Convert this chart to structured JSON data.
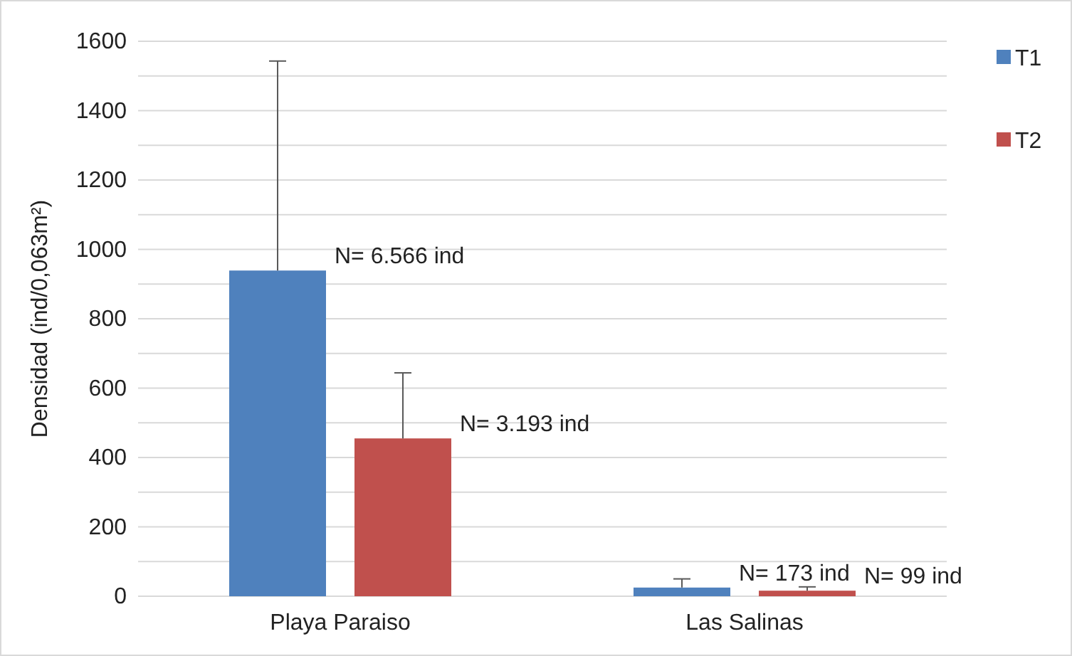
{
  "chart_data": {
    "type": "bar",
    "categories": [
      "Playa Paraiso",
      "Las Salinas"
    ],
    "series": [
      {
        "name": "T1",
        "color": "#4f81bd",
        "values": [
          939,
          25
        ],
        "errors": [
          [
            939,
            1543
          ],
          [
            25,
            50
          ]
        ]
      },
      {
        "name": "T2",
        "color": "#c0504d",
        "values": [
          455,
          16
        ],
        "errors": [
          [
            455,
            644
          ],
          [
            16,
            27
          ]
        ]
      }
    ],
    "ylabel": "Densidad (ind/0,063m²)",
    "ylim": [
      0,
      1600
    ],
    "yticks": [
      0,
      {
        "value": 100,
        "label": null
      },
      200,
      {
        "value": 300,
        "label": null
      },
      400,
      {
        "value": 500,
        "label": null
      },
      600,
      {
        "value": 700,
        "label": null
      },
      800,
      {
        "value": 900,
        "label": null
      },
      1000,
      {
        "value": 1100,
        "label": null
      },
      1200,
      {
        "value": 1300,
        "label": null
      },
      1400,
      {
        "value": 1500,
        "label": null
      },
      1600
    ],
    "grid": "y",
    "legend": "top right",
    "annotations": [
      "N= 6.566 ind",
      "N= 3.193 ind",
      "N= 173 ind",
      "N= 99 ind"
    ]
  }
}
